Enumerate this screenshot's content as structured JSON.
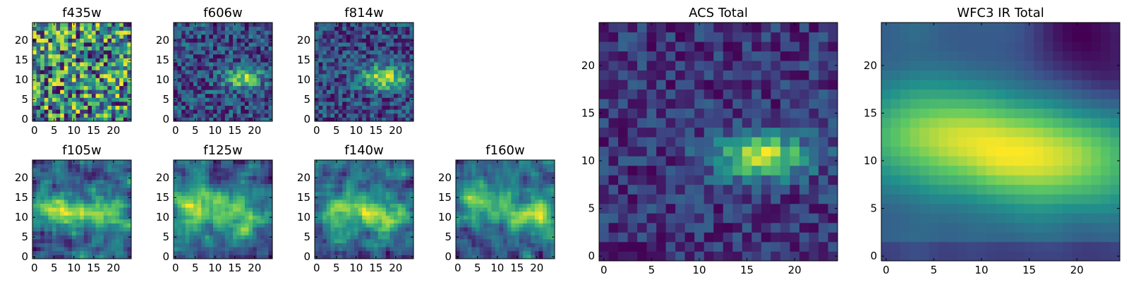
{
  "figure": {
    "colormap": [
      "#440154",
      "#3b528b",
      "#21918c",
      "#5ec962",
      "#fde725"
    ]
  },
  "chart_data": [
    {
      "type": "heatmap",
      "title": "f435w",
      "xlabel": "",
      "ylabel": "",
      "xticks": [
        "0",
        "5",
        "10",
        "15",
        "20"
      ],
      "yticks": [
        "0",
        "5",
        "10",
        "15",
        "20"
      ],
      "xlim": [
        -0.5,
        24.5
      ],
      "ylim": [
        -0.5,
        24.5
      ],
      "grid": false,
      "size": 25,
      "pattern": "noise",
      "blobs": [],
      "noise": 0.3,
      "seed": 11,
      "values_note": ""
    },
    {
      "type": "heatmap",
      "title": "f606w",
      "xlabel": "",
      "ylabel": "",
      "xticks": [
        "0",
        "5",
        "10",
        "15",
        "20"
      ],
      "yticks": [
        "0",
        "5",
        "10",
        "15",
        "20"
      ],
      "xlim": [
        -0.5,
        24.5
      ],
      "ylim": [
        -0.5,
        24.5
      ],
      "grid": false,
      "size": 25,
      "pattern": "noise",
      "blobs": [
        {
          "x": 17,
          "y": 10.5,
          "sx": 3.5,
          "sy": 1.8,
          "a": 0.35
        }
      ],
      "noise": 0.3,
      "seed": 23,
      "values_note": ""
    },
    {
      "type": "heatmap",
      "title": "f814w",
      "xlabel": "",
      "ylabel": "",
      "xticks": [
        "0",
        "5",
        "10",
        "15",
        "20"
      ],
      "yticks": [
        "0",
        "5",
        "10",
        "15",
        "20"
      ],
      "xlim": [
        -0.5,
        24.5
      ],
      "ylim": [
        -0.5,
        24.5
      ],
      "grid": false,
      "size": 25,
      "pattern": "noise",
      "blobs": [
        {
          "x": 17,
          "y": 10.5,
          "sx": 4,
          "sy": 2,
          "a": 0.4
        }
      ],
      "noise": 0.28,
      "seed": 37,
      "values_note": ""
    },
    {
      "type": "heatmap",
      "title": "f105w",
      "xlabel": "",
      "ylabel": "",
      "xticks": [
        "0",
        "5",
        "10",
        "15",
        "20"
      ],
      "yticks": [
        "0",
        "5",
        "10",
        "15",
        "20"
      ],
      "xlim": [
        -0.5,
        24.5
      ],
      "ylim": [
        -0.5,
        24.5
      ],
      "grid": false,
      "size": 25,
      "pattern": "smooth",
      "blobs": [
        {
          "x": 5,
          "y": 12,
          "sx": 5,
          "sy": 3,
          "a": 0.45
        },
        {
          "x": 17,
          "y": 10.5,
          "sx": 5,
          "sy": 3,
          "a": 0.45
        }
      ],
      "noise": 0.55,
      "seed": 41,
      "values_note": ""
    },
    {
      "type": "heatmap",
      "title": "f125w",
      "xlabel": "",
      "ylabel": "",
      "xticks": [
        "0",
        "5",
        "10",
        "15",
        "20"
      ],
      "yticks": [
        "0",
        "5",
        "10",
        "15",
        "20"
      ],
      "xlim": [
        -0.5,
        24.5
      ],
      "ylim": [
        -0.5,
        24.5
      ],
      "grid": false,
      "size": 25,
      "pattern": "smooth",
      "blobs": [
        {
          "x": 5,
          "y": 13,
          "sx": 5,
          "sy": 3,
          "a": 0.4
        },
        {
          "x": 17,
          "y": 10.5,
          "sx": 5,
          "sy": 3,
          "a": 0.4
        }
      ],
      "noise": 0.6,
      "seed": 53,
      "values_note": ""
    },
    {
      "type": "heatmap",
      "title": "f140w",
      "xlabel": "",
      "ylabel": "",
      "xticks": [
        "0",
        "5",
        "10",
        "15",
        "20"
      ],
      "yticks": [
        "0",
        "5",
        "10",
        "15",
        "20"
      ],
      "xlim": [
        -0.5,
        24.5
      ],
      "ylim": [
        -0.5,
        24.5
      ],
      "grid": false,
      "size": 25,
      "pattern": "smooth",
      "blobs": [
        {
          "x": 6,
          "y": 13,
          "sx": 5,
          "sy": 3,
          "a": 0.45
        },
        {
          "x": 17,
          "y": 10.5,
          "sx": 5,
          "sy": 3,
          "a": 0.45
        }
      ],
      "noise": 0.6,
      "seed": 67,
      "values_note": ""
    },
    {
      "type": "heatmap",
      "title": "f160w",
      "xlabel": "",
      "ylabel": "",
      "xticks": [
        "0",
        "5",
        "10",
        "15",
        "20"
      ],
      "yticks": [
        "0",
        "5",
        "10",
        "15",
        "20"
      ],
      "xlim": [
        -0.5,
        24.5
      ],
      "ylim": [
        -0.5,
        24.5
      ],
      "grid": false,
      "size": 25,
      "pattern": "smooth",
      "blobs": [
        {
          "x": 6,
          "y": 14,
          "sx": 5,
          "sy": 3,
          "a": 0.45
        },
        {
          "x": 19,
          "y": 10.5,
          "sx": 5,
          "sy": 3,
          "a": 0.5
        }
      ],
      "noise": 0.55,
      "seed": 79,
      "values_note": ""
    },
    {
      "type": "heatmap",
      "title": "ACS Total",
      "xlabel": "",
      "ylabel": "",
      "xticks": [
        "0",
        "5",
        "10",
        "15",
        "20"
      ],
      "yticks": [
        "0",
        "5",
        "10",
        "15",
        "20"
      ],
      "xlim": [
        -0.5,
        24.5
      ],
      "ylim": [
        -0.5,
        24.5
      ],
      "grid": false,
      "size": 25,
      "pattern": "noise",
      "blobs": [
        {
          "x": 16.5,
          "y": 10.5,
          "sx": 3.5,
          "sy": 1.6,
          "a": 0.5
        }
      ],
      "noise": 0.22,
      "seed": 97,
      "values_note": ""
    },
    {
      "type": "heatmap",
      "title": "WFC3 IR Total",
      "xlabel": "",
      "ylabel": "",
      "xticks": [
        "0",
        "5",
        "10",
        "15",
        "20"
      ],
      "yticks": [
        "0",
        "5",
        "10",
        "15",
        "20"
      ],
      "xlim": [
        -0.5,
        24.5
      ],
      "ylim": [
        -0.5,
        24.5
      ],
      "grid": false,
      "size": 25,
      "pattern": "galaxy",
      "blobs": [
        {
          "x": 5,
          "y": 13,
          "sx": 7,
          "sy": 3.5,
          "a": 0.55
        },
        {
          "x": 17,
          "y": 10,
          "sx": 7,
          "sy": 3.5,
          "a": 0.65
        }
      ],
      "noise": 0.12,
      "seed": 113,
      "values_note": ""
    }
  ]
}
